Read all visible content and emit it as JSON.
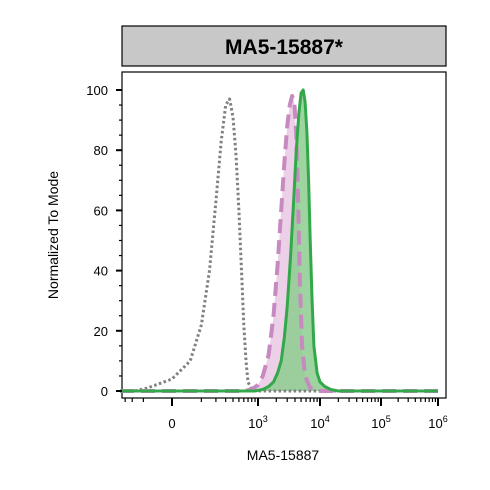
{
  "chart_data": {
    "type": "area",
    "title": "MA5-15887*",
    "xlabel": "MA5-15887",
    "ylabel": "Normalized To Mode",
    "x_scale": "biexponential",
    "xlim": [
      -800,
      1000000
    ],
    "ylim": [
      0,
      100
    ],
    "y_ticks": [
      "0",
      "20",
      "40",
      "60",
      "80",
      "100"
    ],
    "x_ticks": [
      {
        "value": 0,
        "base": "0",
        "exp": ""
      },
      {
        "value": 1000,
        "base": "10",
        "exp": "3"
      },
      {
        "value": 10000,
        "base": "10",
        "exp": "4"
      },
      {
        "value": 100000,
        "base": "10",
        "exp": "5"
      },
      {
        "value": 1000000,
        "base": "10",
        "exp": "6"
      }
    ],
    "grid": false,
    "legend": "none",
    "series": [
      {
        "style": "dotted",
        "color": "#808080",
        "fill": "none",
        "x": [
          -800,
          -350,
          -150,
          0,
          50,
          100,
          150,
          200,
          250,
          300,
          350,
          400,
          450,
          500,
          550,
          600,
          650,
          700,
          800,
          1000,
          1500,
          10000,
          1000000
        ],
        "y": [
          0,
          0,
          1,
          4,
          10,
          22,
          40,
          63,
          83,
          95,
          97,
          91,
          78,
          60,
          40,
          22,
          10,
          3,
          0.5,
          0,
          0,
          0,
          0
        ]
      },
      {
        "style": "dashed",
        "color": "#c78ac0",
        "fill": "#e9c8e3",
        "x": [
          -800,
          600,
          800,
          1000,
          1200,
          1500,
          1800,
          2100,
          2400,
          2700,
          3000,
          3300,
          3600,
          3900,
          4200,
          4500,
          4800,
          5200,
          5800,
          7000,
          10000,
          1000000
        ],
        "y": [
          0,
          0,
          0.5,
          2,
          5,
          12,
          25,
          42,
          60,
          76,
          88,
          95,
          98,
          96,
          85,
          62,
          35,
          15,
          5,
          1,
          0,
          0
        ]
      },
      {
        "style": "solid",
        "color": "#33a84a",
        "fill": "#8dcc8f",
        "x": [
          -800,
          900,
          1200,
          1500,
          1800,
          2100,
          2400,
          2700,
          3000,
          3400,
          3800,
          4200,
          4600,
          5000,
          5400,
          5800,
          6200,
          6600,
          7000,
          7500,
          8000,
          9000,
          10000,
          12000,
          15000,
          20000,
          1000000
        ],
        "y": [
          0,
          0,
          0.5,
          1.5,
          3,
          6,
          10,
          18,
          28,
          45,
          63,
          80,
          92,
          99,
          100,
          96,
          86,
          70,
          50,
          30,
          15,
          6,
          3,
          1.5,
          0.5,
          0,
          0
        ]
      }
    ]
  }
}
